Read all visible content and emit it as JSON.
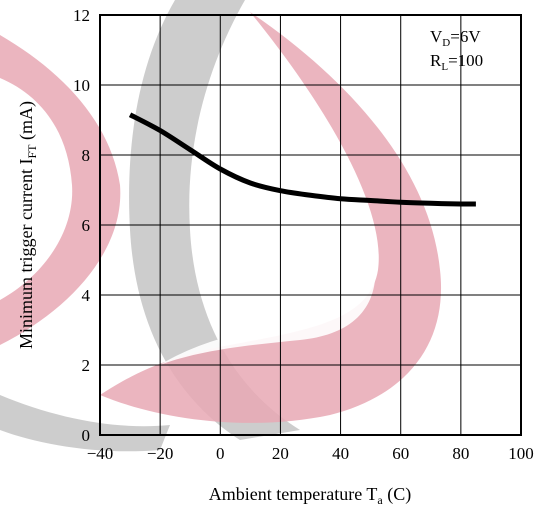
{
  "chart_data": {
    "type": "line",
    "xlabel": "Ambient temperature T",
    "xlabel_sub": "a",
    "xlabel_suffix": " (C)",
    "ylabel": "Minimum trigger current I",
    "ylabel_sub": "FT",
    "ylabel_suffix": " (mA)",
    "xlim": [
      -40,
      100
    ],
    "ylim": [
      0,
      12
    ],
    "xticks": [
      -40,
      -20,
      0,
      20,
      40,
      60,
      80,
      100
    ],
    "xtick_labels": [
      "−40",
      "−20",
      "0",
      "20",
      "40",
      "60",
      "80",
      "100"
    ],
    "yticks": [
      0,
      2,
      4,
      6,
      8,
      10,
      12
    ],
    "ytick_labels": [
      "0",
      "2",
      "4",
      "6",
      "8",
      "10",
      "12"
    ],
    "grid": true,
    "annotations": [
      {
        "main": "V",
        "sub": "D",
        "rest": "=6V"
      },
      {
        "main": "R",
        "sub": "L",
        "rest": "=100"
      }
    ],
    "series": [
      {
        "x": [
          -30,
          -20,
          -10,
          0,
          10,
          20,
          30,
          40,
          50,
          60,
          70,
          80,
          85
        ],
        "y": [
          9.15,
          8.7,
          8.15,
          7.6,
          7.2,
          6.98,
          6.85,
          6.75,
          6.7,
          6.65,
          6.62,
          6.6,
          6.6
        ],
        "color": "#000000"
      }
    ]
  },
  "watermark": {
    "colors": {
      "gray": "#c8c8c8",
      "pink": "#e8a8b4"
    }
  }
}
